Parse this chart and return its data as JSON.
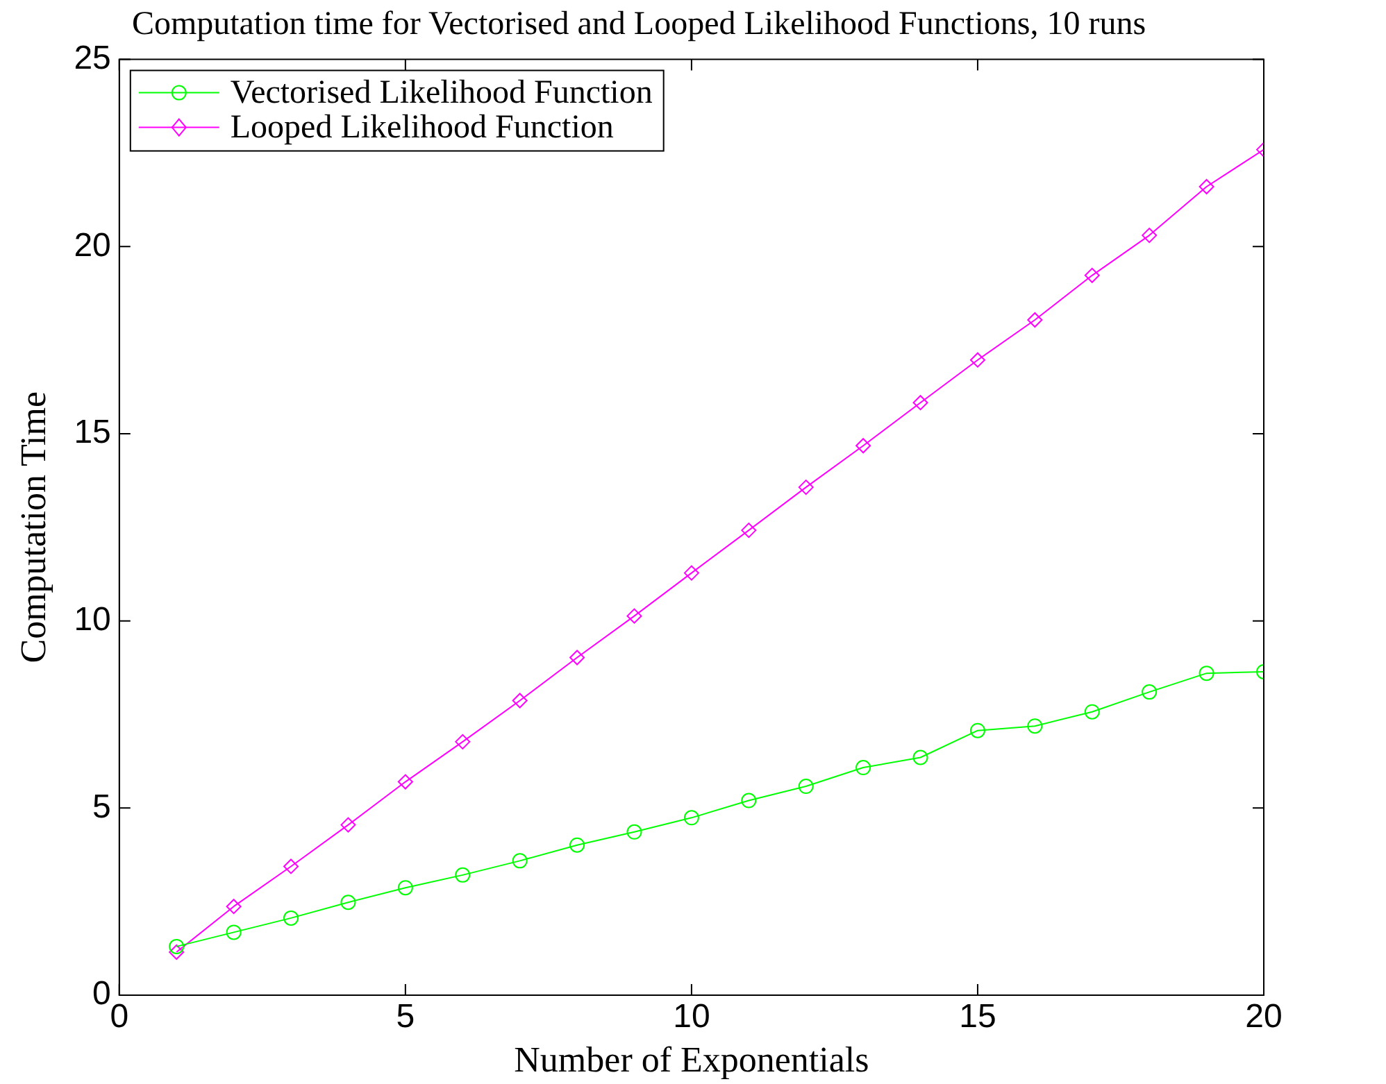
{
  "chart_data": {
    "type": "line",
    "title": "Computation time for Vectorised and Looped Likelihood Functions, 10 runs",
    "xlabel": "Number of Exponentials",
    "ylabel": "Computation Time",
    "x": [
      1,
      2,
      3,
      4,
      5,
      6,
      7,
      8,
      9,
      10,
      11,
      12,
      13,
      14,
      15,
      16,
      17,
      18,
      19,
      20
    ],
    "series": [
      {
        "name": "Vectorised Likelihood Function",
        "color": "#00ff00",
        "marker": "circle",
        "values": [
          1.3,
          1.68,
          2.06,
          2.48,
          2.87,
          3.21,
          3.59,
          4.01,
          4.36,
          4.74,
          5.2,
          5.58,
          6.08,
          6.35,
          7.07,
          7.19,
          7.57,
          8.1,
          8.6,
          8.64
        ]
      },
      {
        "name": "Looped Likelihood Function",
        "color": "#ff00ff",
        "marker": "diamond",
        "values": [
          1.15,
          2.37,
          3.44,
          4.55,
          5.7,
          6.77,
          7.87,
          9.02,
          10.13,
          11.28,
          12.42,
          13.57,
          14.68,
          15.83,
          16.97,
          18.04,
          19.23,
          20.3,
          21.6,
          22.59
        ]
      }
    ],
    "xlim": [
      0,
      20
    ],
    "xticks": [
      0,
      5,
      10,
      15,
      20
    ],
    "ylim": [
      0,
      25
    ],
    "yticks": [
      0,
      5,
      10,
      15,
      20,
      25
    ],
    "grid": false,
    "legend": "top left",
    "line_style": "solid"
  }
}
